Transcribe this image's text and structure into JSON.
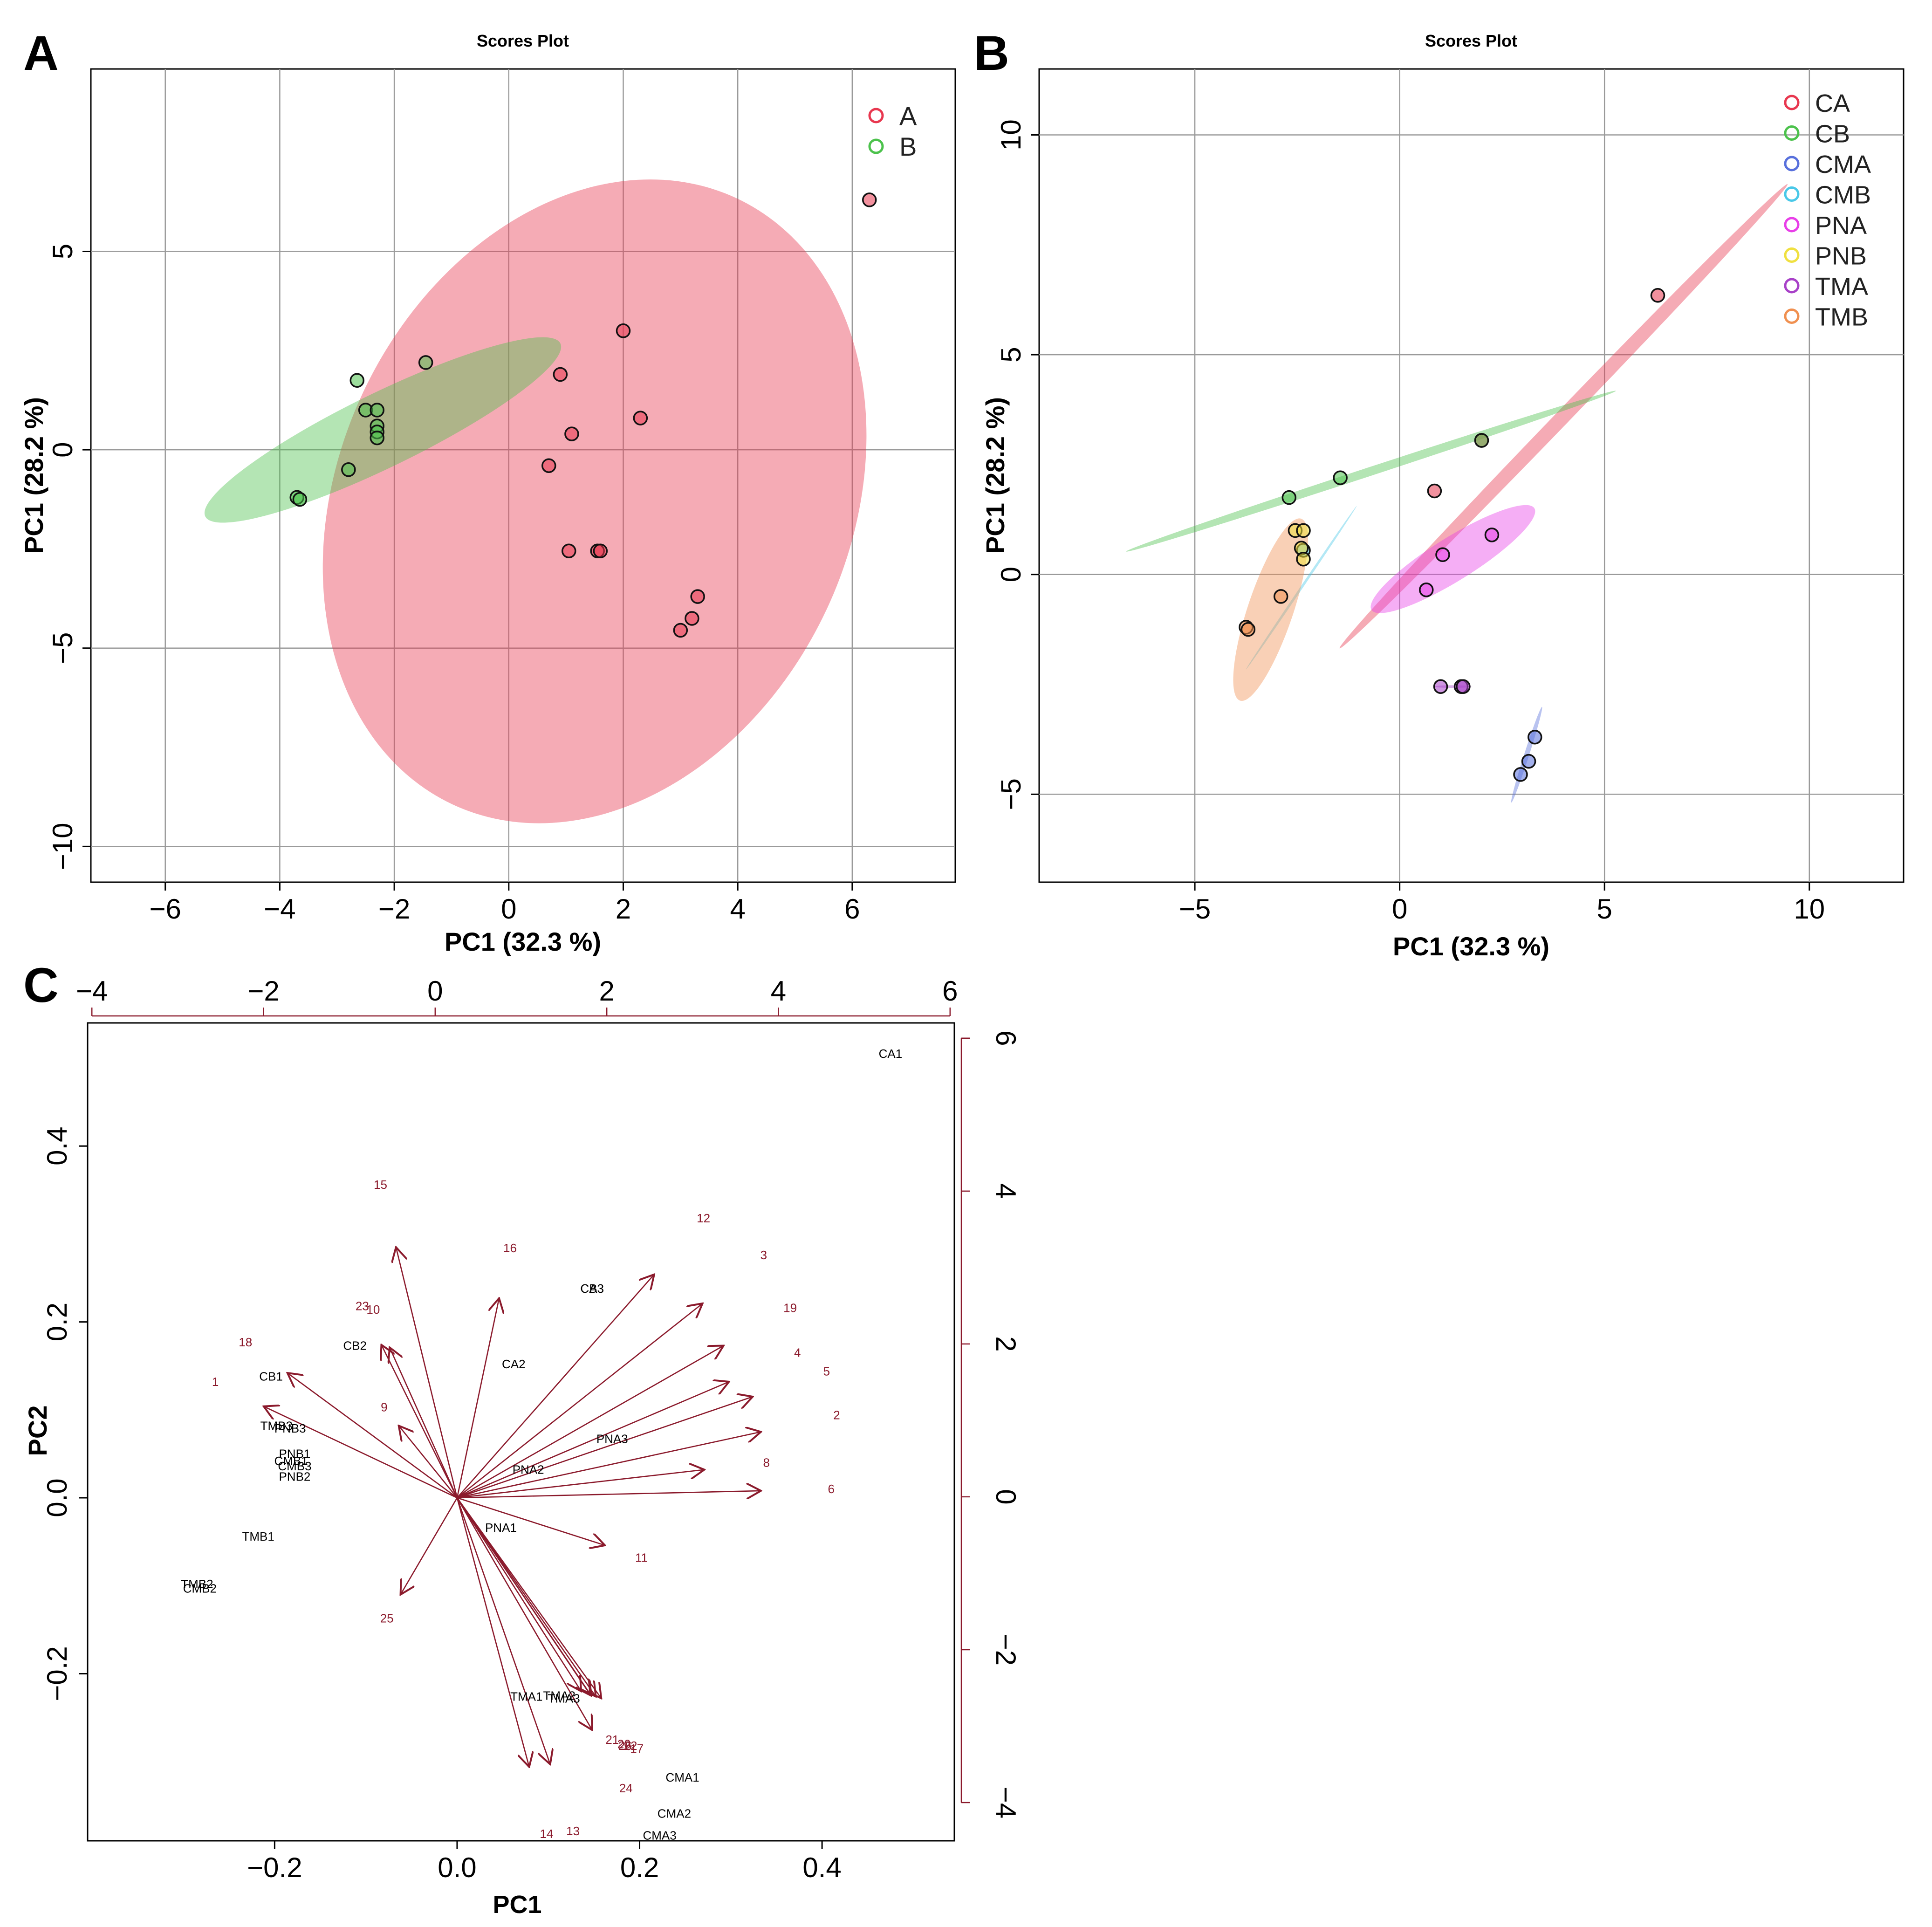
{
  "chart_data": [
    {
      "panel_label": "A",
      "type": "scatter",
      "title": "Scores Plot",
      "xlabel": "PC1 (32.3 %)",
      "ylabel": "PC1 (28.2 %)",
      "xlim": [
        -7.3,
        7.8
      ],
      "ylim": [
        -10.9,
        9.6
      ],
      "xticks": [
        -6,
        -4,
        -2,
        0,
        2,
        4,
        6
      ],
      "yticks": [
        -10,
        -5,
        0,
        5
      ],
      "grid": true,
      "legend_position": "top-right",
      "series": [
        {
          "name": "A",
          "color": "#E8374F",
          "points": [
            [
              6.3,
              6.3
            ],
            [
              2.0,
              3.0
            ],
            [
              0.9,
              1.9
            ],
            [
              2.3,
              0.8
            ],
            [
              1.1,
              0.4
            ],
            [
              0.7,
              -0.4
            ],
            [
              1.05,
              -2.55
            ],
            [
              1.55,
              -2.55
            ],
            [
              1.6,
              -2.55
            ],
            [
              3.3,
              -3.7
            ],
            [
              3.2,
              -4.25
            ],
            [
              3.0,
              -4.55
            ]
          ],
          "ellipse": {
            "cx": 1.5,
            "cy": -1.3,
            "rx": 8.2,
            "ry": 4.6,
            "angle_deg": 80
          }
        },
        {
          "name": "B",
          "color": "#4CC24C",
          "points": [
            [
              -1.45,
              2.2
            ],
            [
              -2.65,
              1.75
            ],
            [
              -2.5,
              1.0
            ],
            [
              -2.3,
              1.0
            ],
            [
              -2.3,
              0.6
            ],
            [
              -2.3,
              0.45
            ],
            [
              -2.3,
              0.3
            ],
            [
              -2.8,
              -0.5
            ],
            [
              -3.7,
              -1.2
            ],
            [
              -3.65,
              -1.25
            ]
          ],
          "ellipse": {
            "cx": -2.2,
            "cy": 0.5,
            "rx": 3.8,
            "ry": 0.85,
            "angle_deg": 36
          }
        }
      ]
    },
    {
      "panel_label": "B",
      "type": "scatter",
      "title": "Scores Plot",
      "xlabel": "PC1 (32.3 %)",
      "ylabel": "PC1 (28.2 %)",
      "xlim": [
        -8.8,
        12.3
      ],
      "ylim": [
        -7.0,
        11.5
      ],
      "xticks": [
        -5,
        0,
        5,
        10
      ],
      "yticks": [
        -5,
        0,
        5,
        10
      ],
      "grid": true,
      "legend_position": "top-right",
      "series": [
        {
          "name": "CA",
          "color": "#E8374F",
          "points": [
            [
              6.3,
              6.35
            ],
            [
              2.0,
              3.05
            ],
            [
              0.85,
              1.9
            ]
          ],
          "ellipse": {
            "cx": 4.0,
            "cy": 3.6,
            "rx": 7.6,
            "ry": 0.17,
            "angle_deg": 44
          }
        },
        {
          "name": "CB",
          "color": "#4CC24C",
          "points": [
            [
              -1.45,
              2.2
            ],
            [
              -2.7,
              1.75
            ],
            [
              2.0,
              3.05
            ]
          ],
          "ellipse": {
            "cx": -0.7,
            "cy": 2.35,
            "rx": 6.25,
            "ry": 0.1,
            "angle_deg": 17
          }
        },
        {
          "name": "CMA",
          "color": "#5870DC",
          "points": [
            [
              3.3,
              -3.7
            ],
            [
              3.15,
              -4.25
            ],
            [
              2.95,
              -4.55
            ]
          ],
          "ellipse": {
            "cx": 3.1,
            "cy": -4.1,
            "rx": 1.15,
            "ry": 0.06,
            "angle_deg": 71
          }
        },
        {
          "name": "CMB",
          "color": "#49C8E8",
          "points": [
            [
              -2.35,
              0.55
            ]
          ],
          "ellipse": {
            "cx": -2.4,
            "cy": -0.3,
            "rx": 2.3,
            "ry": 0.03,
            "angle_deg": 54
          }
        },
        {
          "name": "PNA",
          "color": "#E83FE8",
          "points": [
            [
              2.25,
              0.9
            ],
            [
              1.05,
              0.45
            ],
            [
              0.65,
              -0.35
            ]
          ],
          "ellipse": {
            "cx": 1.3,
            "cy": 0.35,
            "rx": 2.3,
            "ry": 0.5,
            "angle_deg": 30
          }
        },
        {
          "name": "PNB",
          "color": "#F0E040",
          "points": [
            [
              -2.55,
              1.0
            ],
            [
              -2.35,
              1.0
            ],
            [
              -2.4,
              0.6
            ],
            [
              -2.35,
              0.35
            ]
          ]
        },
        {
          "name": "TMA",
          "color": "#A841C8",
          "points": [
            [
              1.0,
              -2.55
            ],
            [
              1.5,
              -2.55
            ],
            [
              1.55,
              -2.55
            ]
          ],
          "ellipse": {
            "cx": 1.3,
            "cy": -2.55,
            "rx": 0.45,
            "ry": 0.03,
            "angle_deg": 0
          }
        },
        {
          "name": "TMB",
          "color": "#F09050",
          "points": [
            [
              -2.9,
              -0.5
            ],
            [
              -3.75,
              -1.2
            ],
            [
              -3.7,
              -1.25
            ]
          ],
          "ellipse": {
            "cx": -3.15,
            "cy": -0.8,
            "rx": 2.2,
            "ry": 0.55,
            "angle_deg": 70
          }
        }
      ]
    },
    {
      "panel_label": "C",
      "type": "biplot",
      "xlabel": "PC1",
      "ylabel": "PC2",
      "xlim": [
        -0.405,
        0.545
      ],
      "ylim": [
        -0.39,
        0.54
      ],
      "xticks": [
        -0.2,
        0.0,
        0.2,
        0.4
      ],
      "yticks": [
        -0.2,
        0.0,
        0.2,
        0.4
      ],
      "xlim_top": [
        -4.05,
        6.05
      ],
      "ylim_right": [
        -4.5,
        6.2
      ],
      "xticks_top": [
        -4,
        -2,
        0,
        2,
        4,
        6
      ],
      "yticks_right": [
        -4,
        -2,
        0,
        2,
        4,
        6
      ],
      "grid": false,
      "scores": [
        {
          "label": "CA1",
          "x": 0.475,
          "y": 0.505
        },
        {
          "label": "CA3",
          "x": 0.148,
          "y": 0.238
        },
        {
          "label": "CB3",
          "x": 0.148,
          "y": 0.238
        },
        {
          "label": "CA2",
          "x": 0.062,
          "y": 0.152
        },
        {
          "label": "CB2",
          "x": -0.112,
          "y": 0.173
        },
        {
          "label": "CB1",
          "x": -0.204,
          "y": 0.138
        },
        {
          "label": "TMB3",
          "x": -0.198,
          "y": 0.082
        },
        {
          "label": "PNB3",
          "x": -0.183,
          "y": 0.079
        },
        {
          "label": "PNB1",
          "x": -0.178,
          "y": 0.05
        },
        {
          "label": "CMB1",
          "x": -0.182,
          "y": 0.042
        },
        {
          "label": "CMB3",
          "x": -0.178,
          "y": 0.036
        },
        {
          "label": "PNB2",
          "x": -0.178,
          "y": 0.024
        },
        {
          "label": "TMB1",
          "x": -0.218,
          "y": -0.044
        },
        {
          "label": "TMB2",
          "x": -0.285,
          "y": -0.098
        },
        {
          "label": "CMB2",
          "x": -0.282,
          "y": -0.103
        },
        {
          "label": "PNA3",
          "x": 0.17,
          "y": 0.067
        },
        {
          "label": "PNA2",
          "x": 0.078,
          "y": 0.032
        },
        {
          "label": "PNA1",
          "x": 0.048,
          "y": -0.034
        },
        {
          "label": "TMA1",
          "x": 0.076,
          "y": -0.226
        },
        {
          "label": "TMA2",
          "x": 0.112,
          "y": -0.225
        },
        {
          "label": "TMA3",
          "x": 0.117,
          "y": -0.228
        },
        {
          "label": "CMA1",
          "x": 0.247,
          "y": -0.318
        },
        {
          "label": "CMA2",
          "x": 0.238,
          "y": -0.359
        },
        {
          "label": "CMA3",
          "x": 0.222,
          "y": -0.384
        }
      ],
      "loadings": [
        {
          "label": "1",
          "x": -0.265,
          "y": 0.132,
          "ax": -0.212,
          "ay": 0.104
        },
        {
          "label": "2",
          "x": 0.416,
          "y": 0.094,
          "ax": 0.333,
          "ay": 0.075
        },
        {
          "label": "3",
          "x": 0.336,
          "y": 0.276,
          "ax": 0.269,
          "ay": 0.221
        },
        {
          "label": "4",
          "x": 0.373,
          "y": 0.165,
          "ax": 0.298,
          "ay": 0.132
        },
        {
          "label": "5",
          "x": 0.405,
          "y": 0.144,
          "ax": 0.324,
          "ay": 0.115
        },
        {
          "label": "6",
          "x": 0.41,
          "y": 0.01,
          "ax": 0.333,
          "ay": 0.008
        },
        {
          "label": "8",
          "x": 0.339,
          "y": 0.04,
          "ax": 0.271,
          "ay": 0.032
        },
        {
          "label": "9",
          "x": -0.08,
          "y": 0.103,
          "ax": -0.064,
          "ay": 0.082
        },
        {
          "label": "10",
          "x": -0.092,
          "y": 0.214,
          "ax": -0.074,
          "ay": 0.171
        },
        {
          "label": "11",
          "x": 0.202,
          "y": -0.068,
          "ax": 0.162,
          "ay": -0.054
        },
        {
          "label": "12",
          "x": 0.27,
          "y": 0.318,
          "ax": 0.216,
          "ay": 0.254
        },
        {
          "label": "13",
          "x": 0.127,
          "y": -0.379,
          "ax": 0.102,
          "ay": -0.303
        },
        {
          "label": "14",
          "x": 0.098,
          "y": -0.382,
          "ax": 0.079,
          "ay": -0.306
        },
        {
          "label": "15",
          "x": -0.084,
          "y": 0.356,
          "ax": -0.067,
          "ay": 0.285
        },
        {
          "label": "16",
          "x": 0.058,
          "y": 0.284,
          "ax": 0.046,
          "ay": 0.227
        },
        {
          "label": "17",
          "x": 0.197,
          "y": -0.285,
          "ax": 0.158,
          "ay": -0.228
        },
        {
          "label": "18",
          "x": -0.232,
          "y": 0.177,
          "ax": -0.186,
          "ay": 0.142
        },
        {
          "label": "19",
          "x": 0.365,
          "y": 0.216,
          "ax": 0.292,
          "ay": 0.173
        },
        {
          "label": "20",
          "x": 0.183,
          "y": -0.28,
          "ax": 0.146,
          "ay": -0.224
        },
        {
          "label": "21",
          "x": 0.17,
          "y": -0.275,
          "ax": 0.136,
          "ay": -0.22
        },
        {
          "label": "22",
          "x": 0.19,
          "y": -0.282,
          "ax": 0.152,
          "ay": -0.226
        },
        {
          "label": "23",
          "x": -0.104,
          "y": 0.218,
          "ax": -0.083,
          "ay": 0.174
        },
        {
          "label": "24",
          "x": 0.185,
          "y": -0.33,
          "ax": 0.148,
          "ay": -0.264
        },
        {
          "label": "25",
          "x": -0.077,
          "y": -0.137,
          "ax": -0.062,
          "ay": -0.11
        },
        {
          "label": "26",
          "x": 0.184,
          "y": -0.282,
          "ax": 0.147,
          "ay": -0.225
        }
      ]
    }
  ]
}
